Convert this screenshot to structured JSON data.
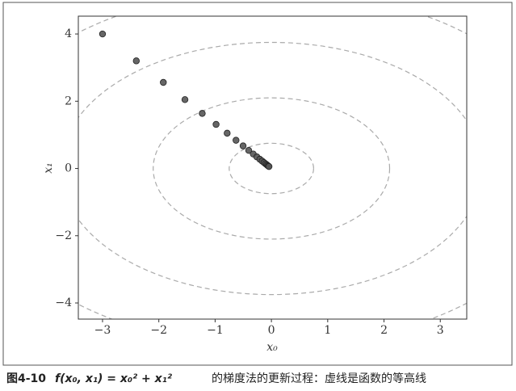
{
  "chart_data": {
    "type": "scatter",
    "caption_label": "图4-10",
    "caption_formula": "f(x₀, x₁) = x₀² + x₁²",
    "caption_text": "的梯度法的更新过程：虚线是函数的等高线",
    "xlabel": "x₀",
    "ylabel": "x₁",
    "x": [
      -3,
      -2.4,
      -1.92,
      -1.536,
      -1.229,
      -0.983,
      -0.786,
      -0.629,
      -0.503,
      -0.403,
      -0.322,
      -0.258,
      -0.206,
      -0.165,
      -0.132,
      -0.106,
      -0.084,
      -0.068,
      -0.054,
      -0.043
    ],
    "y": [
      4,
      3.2,
      2.56,
      2.048,
      1.638,
      1.311,
      1.049,
      0.839,
      0.671,
      0.537,
      0.429,
      0.344,
      0.275,
      0.22,
      0.176,
      0.141,
      0.113,
      0.09,
      0.072,
      0.058
    ],
    "color": "#555555",
    "contour_radii": [
      0.75,
      2.1,
      3.75,
      5.3
    ],
    "contour_color": "#aaaaaa",
    "xlim": [
      -3.43,
      3.47
    ],
    "ylim": [
      -4.48,
      4.53
    ],
    "xticks": [
      {
        "value": -3,
        "label": "−3"
      },
      {
        "value": -2,
        "label": "−2"
      },
      {
        "value": -1,
        "label": "−1"
      },
      0,
      1,
      2,
      3
    ],
    "yticks": [
      {
        "value": -4,
        "label": "−4"
      },
      {
        "value": -2,
        "label": "−2"
      },
      0,
      2,
      4
    ],
    "grid": false
  }
}
